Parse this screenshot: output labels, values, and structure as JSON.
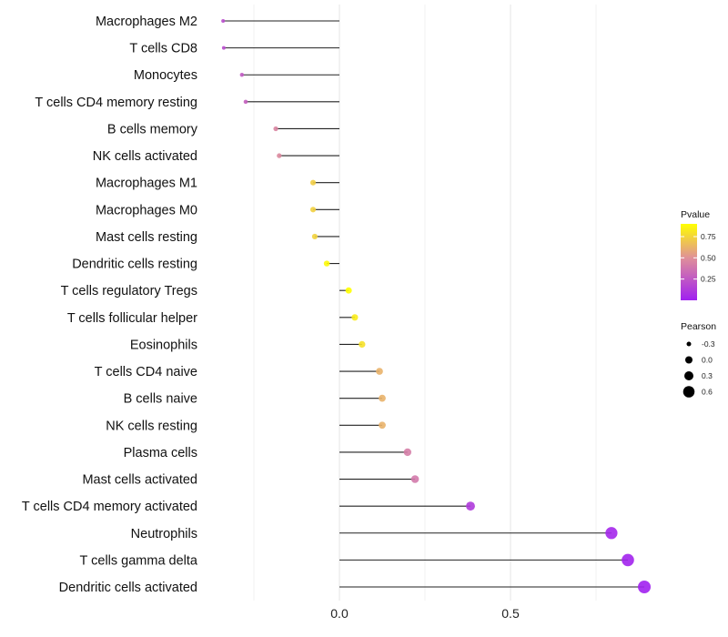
{
  "chart_data": {
    "type": "lollipop",
    "title": "",
    "xlabel": "",
    "ylabel": "",
    "xlim": [
      -0.39,
      1.0
    ],
    "x_ticks": [
      {
        "value": 0.0,
        "label": "0.0"
      },
      {
        "value": 0.5,
        "label": "0.5"
      }
    ],
    "grid_minor": [
      -0.25,
      0.25,
      0.75
    ],
    "categories": [
      "Macrophages M2",
      "T cells CD8",
      "Monocytes",
      "T cells CD4 memory resting",
      "B cells memory",
      "NK cells activated",
      "Macrophages M1",
      "Macrophages M0",
      "Mast cells resting",
      "Dendritic cells resting",
      "T cells regulatory  Tregs ",
      "T cells follicular helper",
      "Eosinophils",
      "T cells CD4 naive",
      "B cells naive",
      "NK cells resting",
      "Plasma cells",
      "Mast cells activated",
      "T cells CD4 memory activated",
      "Neutrophils",
      "T cells gamma delta",
      "Dendritic cells activated"
    ],
    "pearson": [
      -0.34,
      -0.338,
      -0.285,
      -0.274,
      -0.186,
      -0.176,
      -0.077,
      -0.077,
      -0.072,
      -0.037,
      0.027,
      0.045,
      0.066,
      0.117,
      0.125,
      0.125,
      0.199,
      0.221,
      0.383,
      0.795,
      0.843,
      0.891
    ],
    "pvalue": [
      0.2,
      0.2,
      0.26,
      0.28,
      0.45,
      0.47,
      0.72,
      0.73,
      0.74,
      0.88,
      0.9,
      0.83,
      0.79,
      0.62,
      0.62,
      0.62,
      0.42,
      0.4,
      0.12,
      0.03,
      0.015,
      0.005
    ],
    "color_legend": {
      "title": "Pvalue",
      "range": [
        0,
        0.9
      ],
      "ticks": [
        {
          "value": 0.25,
          "label": "0.25"
        },
        {
          "value": 0.5,
          "label": "0.50"
        },
        {
          "value": 0.75,
          "label": "0.75"
        }
      ],
      "low": "#a020f0",
      "mid": "#df8f9a",
      "high": "#ffff00"
    },
    "size_legend": {
      "title": "Pearson",
      "items": [
        {
          "value": -0.3,
          "label": "-0.3"
        },
        {
          "value": 0.0,
          "label": "0.0"
        },
        {
          "value": 0.3,
          "label": "0.3"
        },
        {
          "value": 0.6,
          "label": "0.6"
        }
      ]
    },
    "legend_position": "right"
  }
}
